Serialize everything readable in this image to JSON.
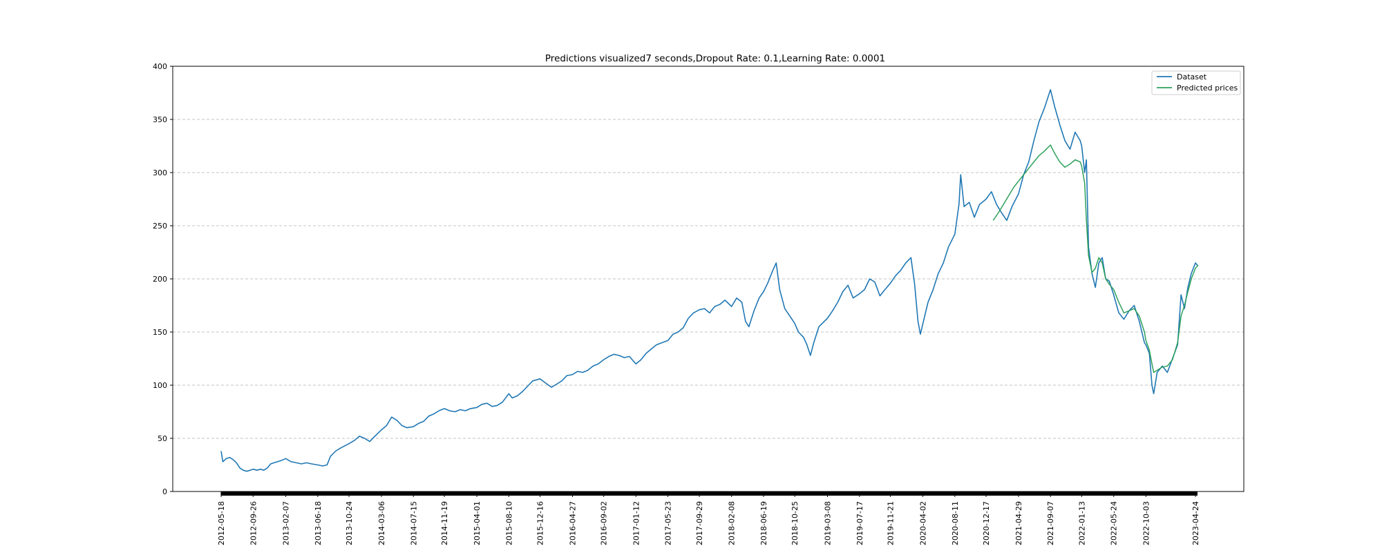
{
  "chart_data": {
    "type": "line",
    "title": "Predictions visualized7 seconds,Dropout Rate: 0.1,Learning Rate: 0.0001",
    "xlabel": "",
    "ylabel": "",
    "ylim": [
      0,
      400
    ],
    "yticks": [
      0,
      50,
      100,
      150,
      200,
      250,
      300,
      350,
      400
    ],
    "ytick_labels": [
      "0",
      "50",
      "100",
      "150",
      "200",
      "250",
      "300",
      "350",
      "400"
    ],
    "xtick_labels": [
      "2012-05-18",
      "2012-09-26",
      "2013-02-07",
      "2013-06-18",
      "2013-10-24",
      "2014-03-06",
      "2014-07-15",
      "2014-11-19",
      "2015-04-01",
      "2015-08-10",
      "2015-12-16",
      "2016-04-27",
      "2016-09-02",
      "2017-01-12",
      "2017-05-23",
      "2017-09-29",
      "2018-02-08",
      "2018-06-19",
      "2018-10-25",
      "2019-03-08",
      "2019-07-17",
      "2019-11-21",
      "2020-04-02",
      "2020-08-11",
      "2020-12-17",
      "2021-04-29",
      "2021-09-07",
      "2022-01-13",
      "2022-05-24",
      "2022-10-03",
      "2023-04-24"
    ],
    "grid": "horizontal dashed",
    "legend_position": "top-right",
    "colors": {
      "dataset": "#1f77b4",
      "predicted": "#2ca05a"
    },
    "series": [
      {
        "name": "Dataset",
        "points": [
          [
            "2012-05-18",
            38
          ],
          [
            "2012-05-25",
            28
          ],
          [
            "2012-06-08",
            31
          ],
          [
            "2012-06-22",
            32
          ],
          [
            "2012-07-06",
            30
          ],
          [
            "2012-07-20",
            27
          ],
          [
            "2012-08-03",
            22
          ],
          [
            "2012-08-17",
            20
          ],
          [
            "2012-08-31",
            19
          ],
          [
            "2012-09-14",
            20
          ],
          [
            "2012-09-26",
            21
          ],
          [
            "2012-10-12",
            20
          ],
          [
            "2012-10-26",
            21
          ],
          [
            "2012-11-09",
            20
          ],
          [
            "2012-11-23",
            22
          ],
          [
            "2012-12-07",
            26
          ],
          [
            "2012-12-21",
            27
          ],
          [
            "2013-01-04",
            28
          ],
          [
            "2013-01-18",
            29
          ],
          [
            "2013-02-07",
            31
          ],
          [
            "2013-03-01",
            28
          ],
          [
            "2013-03-22",
            27
          ],
          [
            "2013-04-12",
            26
          ],
          [
            "2013-05-03",
            27
          ],
          [
            "2013-05-24",
            26
          ],
          [
            "2013-06-18",
            25
          ],
          [
            "2013-07-08",
            24
          ],
          [
            "2013-07-26",
            25
          ],
          [
            "2013-08-09",
            33
          ],
          [
            "2013-08-30",
            38
          ],
          [
            "2013-09-20",
            41
          ],
          [
            "2013-10-24",
            45
          ],
          [
            "2013-11-15",
            48
          ],
          [
            "2013-12-06",
            52
          ],
          [
            "2013-12-27",
            50
          ],
          [
            "2014-01-17",
            47
          ],
          [
            "2014-02-07",
            52
          ],
          [
            "2014-03-06",
            58
          ],
          [
            "2014-03-27",
            62
          ],
          [
            "2014-04-17",
            70
          ],
          [
            "2014-05-08",
            67
          ],
          [
            "2014-05-29",
            62
          ],
          [
            "2014-06-19",
            60
          ],
          [
            "2014-07-15",
            61
          ],
          [
            "2014-08-05",
            64
          ],
          [
            "2014-08-26",
            66
          ],
          [
            "2014-09-16",
            71
          ],
          [
            "2014-10-07",
            73
          ],
          [
            "2014-10-28",
            76
          ],
          [
            "2014-11-19",
            78
          ],
          [
            "2014-12-10",
            76
          ],
          [
            "2015-01-02",
            75
          ],
          [
            "2015-01-23",
            77
          ],
          [
            "2015-02-13",
            76
          ],
          [
            "2015-03-06",
            78
          ],
          [
            "2015-04-01",
            79
          ],
          [
            "2015-04-22",
            82
          ],
          [
            "2015-05-13",
            83
          ],
          [
            "2015-06-03",
            80
          ],
          [
            "2015-06-24",
            81
          ],
          [
            "2015-07-15",
            84
          ],
          [
            "2015-08-10",
            92
          ],
          [
            "2015-08-24",
            88
          ],
          [
            "2015-09-14",
            90
          ],
          [
            "2015-10-05",
            94
          ],
          [
            "2015-10-26",
            99
          ],
          [
            "2015-11-16",
            104
          ],
          [
            "2015-12-16",
            106
          ],
          [
            "2016-01-08",
            102
          ],
          [
            "2016-02-01",
            98
          ],
          [
            "2016-02-22",
            101
          ],
          [
            "2016-03-14",
            104
          ],
          [
            "2016-04-04",
            109
          ],
          [
            "2016-04-27",
            110
          ],
          [
            "2016-05-18",
            113
          ],
          [
            "2016-06-08",
            112
          ],
          [
            "2016-06-29",
            114
          ],
          [
            "2016-07-20",
            118
          ],
          [
            "2016-08-10",
            120
          ],
          [
            "2016-09-02",
            124
          ],
          [
            "2016-09-23",
            127
          ],
          [
            "2016-10-14",
            129
          ],
          [
            "2016-11-04",
            128
          ],
          [
            "2016-11-25",
            126
          ],
          [
            "2016-12-16",
            127
          ],
          [
            "2017-01-12",
            120
          ],
          [
            "2017-02-02",
            124
          ],
          [
            "2017-02-23",
            130
          ],
          [
            "2017-03-16",
            134
          ],
          [
            "2017-04-06",
            138
          ],
          [
            "2017-05-23",
            142
          ],
          [
            "2017-06-13",
            148
          ],
          [
            "2017-07-04",
            150
          ],
          [
            "2017-07-25",
            154
          ],
          [
            "2017-08-15",
            163
          ],
          [
            "2017-09-05",
            168
          ],
          [
            "2017-09-29",
            171
          ],
          [
            "2017-10-20",
            172
          ],
          [
            "2017-11-10",
            168
          ],
          [
            "2017-12-01",
            174
          ],
          [
            "2017-12-22",
            176
          ],
          [
            "2018-01-12",
            180
          ],
          [
            "2018-02-08",
            174
          ],
          [
            "2018-03-01",
            182
          ],
          [
            "2018-03-22",
            178
          ],
          [
            "2018-04-06",
            160
          ],
          [
            "2018-04-20",
            155
          ],
          [
            "2018-05-11",
            170
          ],
          [
            "2018-06-01",
            182
          ],
          [
            "2018-06-19",
            188
          ],
          [
            "2018-07-06",
            196
          ],
          [
            "2018-07-27",
            208
          ],
          [
            "2018-08-10",
            215
          ],
          [
            "2018-08-24",
            190
          ],
          [
            "2018-09-14",
            172
          ],
          [
            "2018-10-05",
            165
          ],
          [
            "2018-10-25",
            158
          ],
          [
            "2018-11-09",
            150
          ],
          [
            "2018-11-30",
            145
          ],
          [
            "2018-12-14",
            138
          ],
          [
            "2018-12-28",
            128
          ],
          [
            "2019-01-11",
            140
          ],
          [
            "2019-02-01",
            155
          ],
          [
            "2019-03-08",
            163
          ],
          [
            "2019-03-29",
            170
          ],
          [
            "2019-04-19",
            178
          ],
          [
            "2019-05-10",
            188
          ],
          [
            "2019-05-31",
            194
          ],
          [
            "2019-06-21",
            182
          ],
          [
            "2019-07-17",
            186
          ],
          [
            "2019-08-07",
            190
          ],
          [
            "2019-08-28",
            200
          ],
          [
            "2019-09-18",
            197
          ],
          [
            "2019-10-09",
            184
          ],
          [
            "2019-10-30",
            190
          ],
          [
            "2019-11-21",
            196
          ],
          [
            "2019-12-12",
            203
          ],
          [
            "2020-01-02",
            208
          ],
          [
            "2020-01-23",
            215
          ],
          [
            "2020-02-13",
            220
          ],
          [
            "2020-02-28",
            195
          ],
          [
            "2020-03-13",
            160
          ],
          [
            "2020-03-23",
            148
          ],
          [
            "2020-04-02",
            158
          ],
          [
            "2020-04-23",
            178
          ],
          [
            "2020-05-14",
            190
          ],
          [
            "2020-06-04",
            205
          ],
          [
            "2020-06-25",
            215
          ],
          [
            "2020-07-16",
            230
          ],
          [
            "2020-08-11",
            242
          ],
          [
            "2020-08-28",
            270
          ],
          [
            "2020-09-04",
            298
          ],
          [
            "2020-09-18",
            268
          ],
          [
            "2020-10-09",
            272
          ],
          [
            "2020-10-30",
            258
          ],
          [
            "2020-11-20",
            270
          ],
          [
            "2020-12-17",
            275
          ],
          [
            "2021-01-08",
            282
          ],
          [
            "2021-01-29",
            270
          ],
          [
            "2021-02-19",
            262
          ],
          [
            "2021-03-12",
            255
          ],
          [
            "2021-04-02",
            268
          ],
          [
            "2021-04-29",
            280
          ],
          [
            "2021-05-20",
            298
          ],
          [
            "2021-06-10",
            310
          ],
          [
            "2021-07-01",
            330
          ],
          [
            "2021-07-22",
            348
          ],
          [
            "2021-08-12",
            360
          ],
          [
            "2021-09-07",
            378
          ],
          [
            "2021-09-24",
            362
          ],
          [
            "2021-10-15",
            345
          ],
          [
            "2021-11-05",
            330
          ],
          [
            "2021-11-26",
            322
          ],
          [
            "2021-12-17",
            338
          ],
          [
            "2022-01-07",
            330
          ],
          [
            "2022-01-13",
            325
          ],
          [
            "2022-01-25",
            300
          ],
          [
            "2022-02-01",
            312
          ],
          [
            "2022-02-10",
            230
          ],
          [
            "2022-02-24",
            205
          ],
          [
            "2022-03-10",
            192
          ],
          [
            "2022-03-24",
            215
          ],
          [
            "2022-04-07",
            220
          ],
          [
            "2022-04-21",
            200
          ],
          [
            "2022-05-06",
            198
          ],
          [
            "2022-05-24",
            185
          ],
          [
            "2022-06-14",
            168
          ],
          [
            "2022-07-05",
            162
          ],
          [
            "2022-07-26",
            170
          ],
          [
            "2022-08-16",
            175
          ],
          [
            "2022-09-06",
            160
          ],
          [
            "2022-09-27",
            140
          ],
          [
            "2022-10-03",
            138
          ],
          [
            "2022-10-17",
            130
          ],
          [
            "2022-10-28",
            100
          ],
          [
            "2022-11-04",
            92
          ],
          [
            "2022-11-18",
            112
          ],
          [
            "2022-12-09",
            118
          ],
          [
            "2022-12-30",
            112
          ],
          [
            "2023-01-20",
            125
          ],
          [
            "2023-02-10",
            138
          ],
          [
            "2023-02-24",
            185
          ],
          [
            "2023-03-10",
            172
          ],
          [
            "2023-03-24",
            192
          ],
          [
            "2023-04-07",
            205
          ],
          [
            "2023-04-24",
            215
          ],
          [
            "2023-05-05",
            212
          ]
        ]
      },
      {
        "name": "Predicted prices",
        "points": [
          [
            "2021-01-15",
            255
          ],
          [
            "2021-02-05",
            262
          ],
          [
            "2021-02-26",
            270
          ],
          [
            "2021-03-19",
            278
          ],
          [
            "2021-04-09",
            286
          ],
          [
            "2021-04-29",
            292
          ],
          [
            "2021-05-20",
            298
          ],
          [
            "2021-06-10",
            304
          ],
          [
            "2021-07-01",
            310
          ],
          [
            "2021-07-22",
            316
          ],
          [
            "2021-08-12",
            320
          ],
          [
            "2021-09-07",
            326
          ],
          [
            "2021-09-24",
            318
          ],
          [
            "2021-10-15",
            310
          ],
          [
            "2021-11-05",
            305
          ],
          [
            "2021-11-26",
            308
          ],
          [
            "2021-12-17",
            312
          ],
          [
            "2022-01-07",
            310
          ],
          [
            "2022-01-13",
            306
          ],
          [
            "2022-01-25",
            290
          ],
          [
            "2022-02-01",
            255
          ],
          [
            "2022-02-10",
            222
          ],
          [
            "2022-02-24",
            206
          ],
          [
            "2022-03-10",
            210
          ],
          [
            "2022-03-24",
            220
          ],
          [
            "2022-04-07",
            215
          ],
          [
            "2022-04-21",
            200
          ],
          [
            "2022-05-06",
            195
          ],
          [
            "2022-05-24",
            190
          ],
          [
            "2022-06-14",
            178
          ],
          [
            "2022-07-05",
            168
          ],
          [
            "2022-07-26",
            170
          ],
          [
            "2022-08-16",
            172
          ],
          [
            "2022-09-06",
            165
          ],
          [
            "2022-09-27",
            150
          ],
          [
            "2022-10-03",
            142
          ],
          [
            "2022-10-17",
            133
          ],
          [
            "2022-10-28",
            120
          ],
          [
            "2022-11-04",
            112
          ],
          [
            "2022-11-18",
            114
          ],
          [
            "2022-12-09",
            117
          ],
          [
            "2022-12-30",
            118
          ],
          [
            "2023-01-20",
            124
          ],
          [
            "2023-02-10",
            140
          ],
          [
            "2023-02-24",
            165
          ],
          [
            "2023-03-10",
            175
          ],
          [
            "2023-03-24",
            188
          ],
          [
            "2023-04-07",
            200
          ],
          [
            "2023-04-24",
            210
          ],
          [
            "2023-05-05",
            213
          ]
        ]
      }
    ]
  }
}
